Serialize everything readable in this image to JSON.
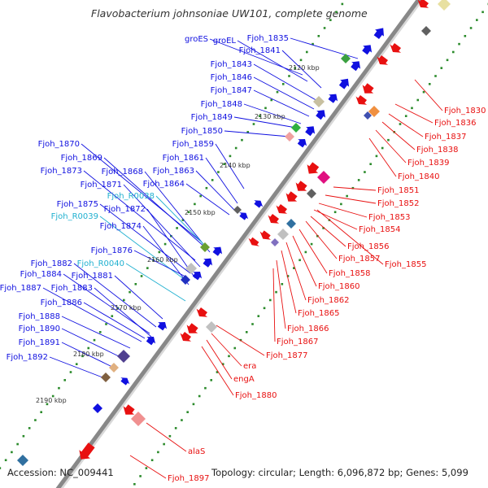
{
  "title": "Flavobacterium johnsoniae UW101, complete genome",
  "footer": {
    "accession": "Accession: NC_009441",
    "summary": "Topology: circular; Length: 6,096,872 bp; Genes: 5,099"
  },
  "colors": {
    "forward_gene": "#1010e0",
    "reverse_gene": "#e81010",
    "rna_gene": "#20b0d0",
    "backbone": "#888888",
    "tick_dots": "#2a8a2a"
  },
  "scale_ticks": [
    "2120 kbp",
    "2130 kbp",
    "2140 kbp",
    "2150 kbp",
    "2160 kbp",
    "2170 kbp",
    "2180 kbp",
    "2190 kbp"
  ],
  "forward_labels": [
    "groES",
    "groEL",
    "Fjoh_1835",
    "Fjoh_1841",
    "Fjoh_1843",
    "Fjoh_1846",
    "Fjoh_1847",
    "Fjoh_1848",
    "Fjoh_1849",
    "Fjoh_1850",
    "Fjoh_1859",
    "Fjoh_1861",
    "Fjoh_1863",
    "Fjoh_1864",
    "Fjoh_1870",
    "Fjoh_1869",
    "Fjoh_1868",
    "Fjoh_1873",
    "Fjoh_1871",
    "Fjoh_R0038",
    "Fjoh_1875",
    "Fjoh_1872",
    "Fjoh_R0039",
    "Fjoh_1874",
    "Fjoh_1876",
    "Fjoh_1882",
    "Fjoh_R0040",
    "Fjoh_1884",
    "Fjoh_1881",
    "Fjoh_1887",
    "Fjoh_1883",
    "Fjoh_1886",
    "Fjoh_1888",
    "Fjoh_1890",
    "Fjoh_1891",
    "Fjoh_1892"
  ],
  "reverse_labels": [
    "Fjoh_1830",
    "Fjoh_1836",
    "Fjoh_1837",
    "Fjoh_1838",
    "Fjoh_1839",
    "Fjoh_1840",
    "Fjoh_1851",
    "Fjoh_1852",
    "Fjoh_1853",
    "Fjoh_1854",
    "Fjoh_1856",
    "Fjoh_1857",
    "Fjoh_1855",
    "Fjoh_1858",
    "Fjoh_1860",
    "Fjoh_1862",
    "Fjoh_1865",
    "Fjoh_1866",
    "Fjoh_1867",
    "Fjoh_1877",
    "era",
    "engA",
    "Fjoh_1880",
    "alaS",
    "Fjoh_1897"
  ]
}
